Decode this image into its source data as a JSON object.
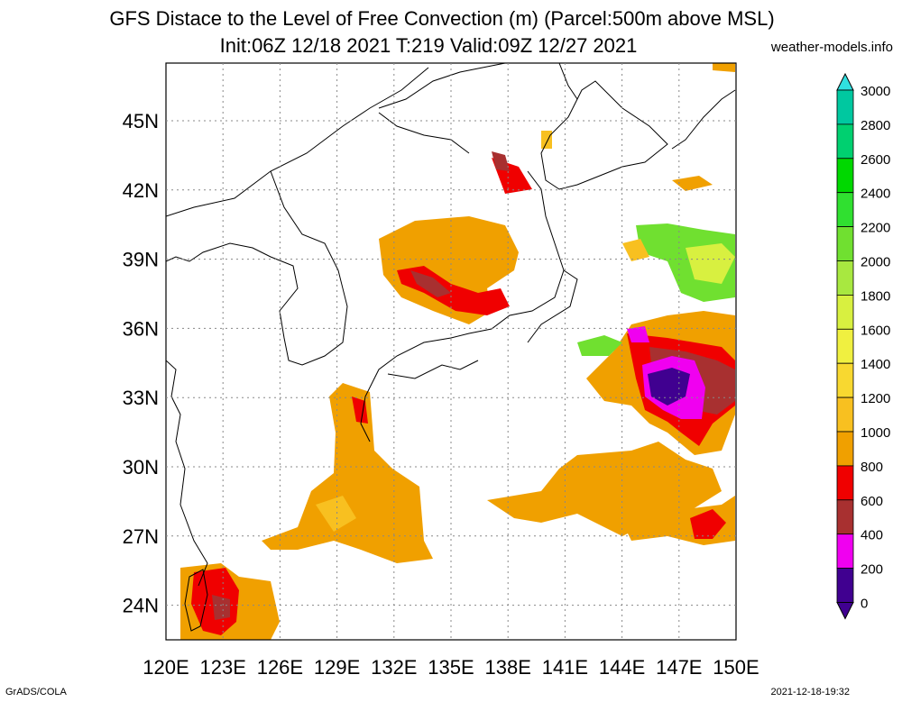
{
  "title_line1": "GFS Distace to the Level of Free Convection (m) (Parcel:500m above MSL)",
  "title_line2": "Init:06Z 12/18 2021 T:219 Valid:09Z 12/27 2021",
  "site": "weather-models.info",
  "footer_left": "GrADS/COLA",
  "footer_right": "2021-12-18-19:32",
  "map": {
    "lon_labels": [
      "120E",
      "123E",
      "126E",
      "129E",
      "132E",
      "135E",
      "138E",
      "141E",
      "144E",
      "147E",
      "150E"
    ],
    "lat_labels": [
      "45N",
      "42N",
      "39N",
      "36N",
      "33N",
      "30N",
      "27N",
      "24N"
    ],
    "lon_range": [
      120,
      150
    ],
    "lat_range": [
      22.5,
      47.5
    ],
    "grid_step": 3
  },
  "colorbar": {
    "levels": [
      "3000",
      "2800",
      "2600",
      "2400",
      "2200",
      "2000",
      "1800",
      "1600",
      "1400",
      "1200",
      "1000",
      "800",
      "600",
      "400",
      "200",
      "0"
    ],
    "colors": [
      "#30e0e0",
      "#00c8a0",
      "#00d070",
      "#00d800",
      "#30e030",
      "#70e030",
      "#a8e840",
      "#d8f040",
      "#f0f040",
      "#f8d830",
      "#f8c020",
      "#f0a000",
      "#f00000",
      "#a83030",
      "#f000f0",
      "#400090"
    ]
  },
  "colors": {
    "orange": "#f0a000",
    "light_orange": "#f8c020",
    "red": "#f00000",
    "brown": "#a83030",
    "magenta": "#f000f0",
    "purple": "#400090",
    "green": "#70e030",
    "yellow": "#f0f040"
  }
}
